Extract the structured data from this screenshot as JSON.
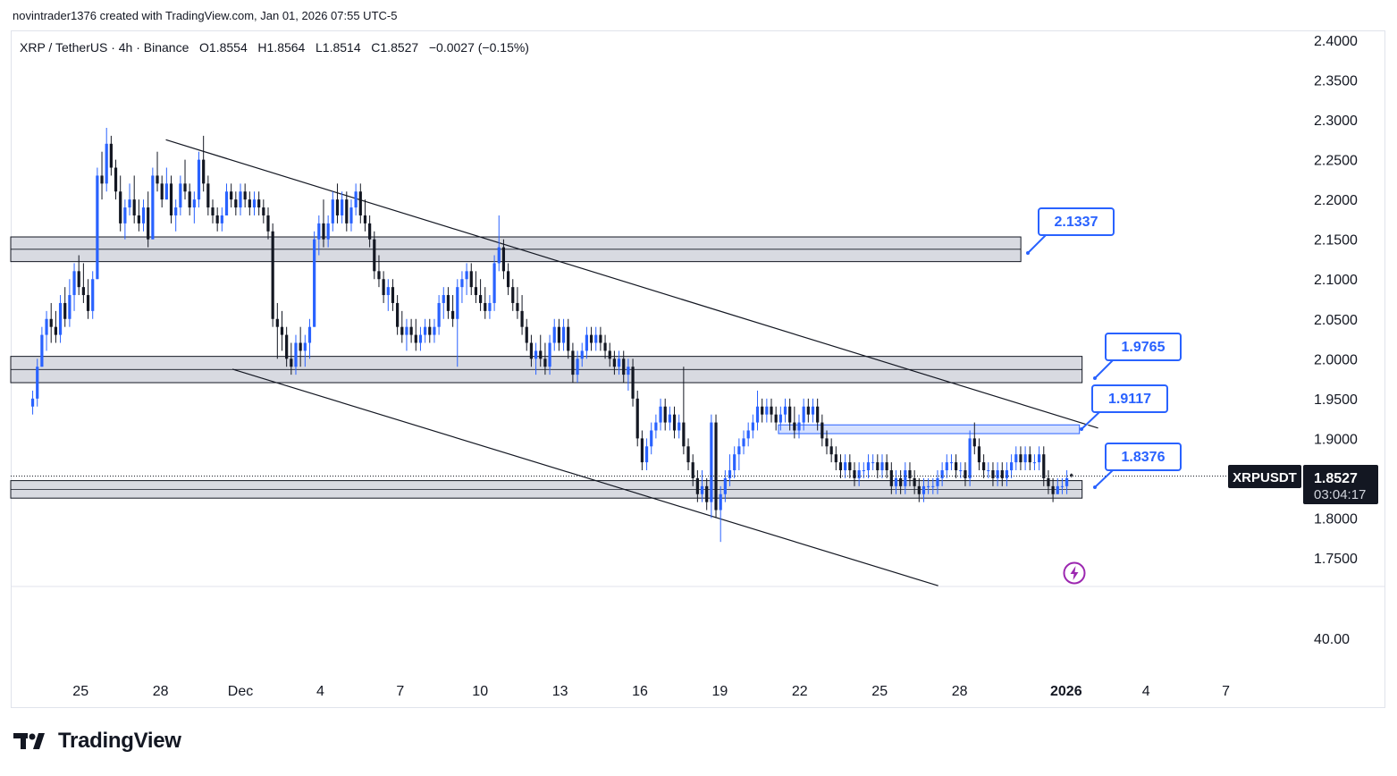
{
  "attribution": "novintrader1376 created with TradingView.com, Jan 01, 2026 07:55 UTC-5",
  "legend": {
    "symbol": "XRP / TetherUS · 4h · Binance",
    "ohlc": "O1.8554   H1.8564   L1.8514   C1.8527   −0.0027 (−0.15%)"
  },
  "brand": {
    "name": "TradingView",
    "logo_icon": "tradingview-logo-icon"
  },
  "price_tag": {
    "ticker": "XRPUSDT",
    "price": "1.8527",
    "countdown": "03:04:17"
  },
  "indicator_pane": {
    "value_label": "40.00"
  },
  "colors": {
    "up": "#2962ff",
    "down": "#131722",
    "zone_fill": "#d1d4dc",
    "blue_zone_fill": "#cfdcff",
    "accent": "#2962ff"
  },
  "chart_data": {
    "type": "candlestick",
    "interval": "4h",
    "yaxis": {
      "range": [
        1.7,
        2.4
      ],
      "ticks": [
        "2.4000",
        "2.3500",
        "2.3000",
        "2.2500",
        "2.2000",
        "2.1500",
        "2.1000",
        "2.0500",
        "2.0000",
        "1.9500",
        "1.9000",
        "1.8500",
        "1.8000",
        "1.7500"
      ]
    },
    "xaxis": {
      "ticks": [
        "25",
        "28",
        "Dec",
        "4",
        "7",
        "10",
        "13",
        "16",
        "19",
        "22",
        "25",
        "28",
        "2026",
        "4",
        "7"
      ],
      "bold_ticks": [
        "2026"
      ],
      "range_days": [
        -7.5,
        37.5
      ]
    },
    "horizontal_zones": [
      {
        "name": "resistance-zone",
        "low": 2.122,
        "high": 2.153,
        "start_day": -8.0,
        "end_day": 29.3,
        "color": "gray"
      },
      {
        "name": "mid-zone",
        "low": 1.97,
        "high": 2.003,
        "start_day": -8.0,
        "end_day": 31.6,
        "color": "gray"
      },
      {
        "name": "blue-zone",
        "low": 1.906,
        "high": 1.917,
        "start_day": 20.2,
        "end_day": 31.5,
        "color": "blue"
      },
      {
        "name": "support-zone",
        "low": 1.825,
        "high": 1.847,
        "start_day": -8.0,
        "end_day": 31.6,
        "color": "gray"
      }
    ],
    "trendlines": [
      {
        "name": "upper-channel-line",
        "x1": -2.8,
        "y1": 2.275,
        "x2": 32.2,
        "y2": 1.913
      },
      {
        "name": "lower-channel-line",
        "x1": -0.3,
        "y1": 1.987,
        "x2": 26.2,
        "y2": 1.715
      }
    ],
    "callouts": [
      {
        "label": "2.1337",
        "price": 2.1337
      },
      {
        "label": "1.9765",
        "price": 1.9765
      },
      {
        "label": "1.9117",
        "price": 1.9117
      },
      {
        "label": "1.8376",
        "price": 1.8376
      }
    ],
    "last_price": 1.8527,
    "candles": [
      [
        1.94,
        1.96,
        1.93,
        1.95
      ],
      [
        1.95,
        2.0,
        1.94,
        1.99
      ],
      [
        1.99,
        2.04,
        1.99,
        2.03
      ],
      [
        2.03,
        2.06,
        2.01,
        2.05
      ],
      [
        2.05,
        2.07,
        2.02,
        2.04
      ],
      [
        2.04,
        2.06,
        2.02,
        2.03
      ],
      [
        2.03,
        2.08,
        2.02,
        2.07
      ],
      [
        2.07,
        2.09,
        2.04,
        2.05
      ],
      [
        2.05,
        2.1,
        2.04,
        2.08
      ],
      [
        2.08,
        2.12,
        2.06,
        2.11
      ],
      [
        2.11,
        2.13,
        2.08,
        2.09
      ],
      [
        2.09,
        2.12,
        2.07,
        2.08
      ],
      [
        2.08,
        2.1,
        2.05,
        2.06
      ],
      [
        2.06,
        2.11,
        2.05,
        2.1
      ],
      [
        2.1,
        2.24,
        2.1,
        2.23
      ],
      [
        2.23,
        2.26,
        2.2,
        2.22
      ],
      [
        2.22,
        2.29,
        2.21,
        2.27
      ],
      [
        2.27,
        2.28,
        2.23,
        2.24
      ],
      [
        2.24,
        2.25,
        2.2,
        2.21
      ],
      [
        2.21,
        2.23,
        2.16,
        2.17
      ],
      [
        2.17,
        2.2,
        2.15,
        2.19
      ],
      [
        2.19,
        2.22,
        2.18,
        2.2
      ],
      [
        2.2,
        2.23,
        2.17,
        2.18
      ],
      [
        2.18,
        2.2,
        2.16,
        2.17
      ],
      [
        2.17,
        2.2,
        2.16,
        2.19
      ],
      [
        2.19,
        2.21,
        2.14,
        2.15
      ],
      [
        2.15,
        2.24,
        2.15,
        2.23
      ],
      [
        2.23,
        2.26,
        2.21,
        2.22
      ],
      [
        2.22,
        2.23,
        2.19,
        2.2
      ],
      [
        2.2,
        2.24,
        2.2,
        2.22
      ],
      [
        2.22,
        2.23,
        2.17,
        2.18
      ],
      [
        2.18,
        2.2,
        2.16,
        2.19
      ],
      [
        2.19,
        2.23,
        2.18,
        2.22
      ],
      [
        2.22,
        2.25,
        2.2,
        2.21
      ],
      [
        2.21,
        2.22,
        2.18,
        2.19
      ],
      [
        2.19,
        2.21,
        2.17,
        2.2
      ],
      [
        2.2,
        2.26,
        2.19,
        2.25
      ],
      [
        2.25,
        2.28,
        2.21,
        2.22
      ],
      [
        2.22,
        2.23,
        2.18,
        2.19
      ],
      [
        2.19,
        2.2,
        2.17,
        2.18
      ],
      [
        2.18,
        2.19,
        2.16,
        2.17
      ],
      [
        2.17,
        2.19,
        2.16,
        2.18
      ],
      [
        2.18,
        2.22,
        2.18,
        2.21
      ],
      [
        2.21,
        2.22,
        2.19,
        2.2
      ],
      [
        2.2,
        2.21,
        2.18,
        2.19
      ],
      [
        2.19,
        2.22,
        2.18,
        2.21
      ],
      [
        2.21,
        2.22,
        2.19,
        2.2
      ],
      [
        2.2,
        2.21,
        2.18,
        2.19
      ],
      [
        2.19,
        2.21,
        2.18,
        2.2
      ],
      [
        2.2,
        2.21,
        2.18,
        2.19
      ],
      [
        2.19,
        2.2,
        2.17,
        2.18
      ],
      [
        2.18,
        2.19,
        2.15,
        2.16
      ],
      [
        2.16,
        2.17,
        2.04,
        2.05
      ],
      [
        2.05,
        2.07,
        2.0,
        2.04
      ],
      [
        2.04,
        2.06,
        2.01,
        2.03
      ],
      [
        2.03,
        2.04,
        1.99,
        2.0
      ],
      [
        2.0,
        2.02,
        1.98,
        1.99
      ],
      [
        1.99,
        2.03,
        1.98,
        2.02
      ],
      [
        2.02,
        2.04,
        1.99,
        2.01
      ],
      [
        2.01,
        2.03,
        1.99,
        2.02
      ],
      [
        2.02,
        2.05,
        2.0,
        2.04
      ],
      [
        2.04,
        2.16,
        2.04,
        2.15
      ],
      [
        2.15,
        2.18,
        2.13,
        2.17
      ],
      [
        2.17,
        2.2,
        2.14,
        2.15
      ],
      [
        2.15,
        2.18,
        2.14,
        2.17
      ],
      [
        2.17,
        2.21,
        2.16,
        2.2
      ],
      [
        2.2,
        2.22,
        2.17,
        2.18
      ],
      [
        2.18,
        2.21,
        2.17,
        2.2
      ],
      [
        2.2,
        2.21,
        2.16,
        2.17
      ],
      [
        2.17,
        2.2,
        2.16,
        2.19
      ],
      [
        2.19,
        2.22,
        2.18,
        2.21
      ],
      [
        2.21,
        2.22,
        2.17,
        2.18
      ],
      [
        2.18,
        2.2,
        2.16,
        2.17
      ],
      [
        2.17,
        2.18,
        2.14,
        2.15
      ],
      [
        2.15,
        2.16,
        2.1,
        2.11
      ],
      [
        2.11,
        2.13,
        2.09,
        2.1
      ],
      [
        2.1,
        2.11,
        2.07,
        2.08
      ],
      [
        2.08,
        2.1,
        2.06,
        2.09
      ],
      [
        2.09,
        2.1,
        2.06,
        2.07
      ],
      [
        2.07,
        2.08,
        2.03,
        2.04
      ],
      [
        2.04,
        2.06,
        2.02,
        2.03
      ],
      [
        2.03,
        2.05,
        2.01,
        2.04
      ],
      [
        2.04,
        2.05,
        2.02,
        2.03
      ],
      [
        2.03,
        2.05,
        2.01,
        2.02
      ],
      [
        2.02,
        2.04,
        2.01,
        2.03
      ],
      [
        2.03,
        2.05,
        2.02,
        2.04
      ],
      [
        2.04,
        2.05,
        2.02,
        2.03
      ],
      [
        2.03,
        2.05,
        2.02,
        2.04
      ],
      [
        2.04,
        2.08,
        2.03,
        2.07
      ],
      [
        2.07,
        2.09,
        2.05,
        2.08
      ],
      [
        2.08,
        2.09,
        2.05,
        2.06
      ],
      [
        2.06,
        2.08,
        2.04,
        2.05
      ],
      [
        2.05,
        2.1,
        1.99,
        2.09
      ],
      [
        2.09,
        2.11,
        2.07,
        2.1
      ],
      [
        2.1,
        2.12,
        2.08,
        2.11
      ],
      [
        2.11,
        2.12,
        2.08,
        2.09
      ],
      [
        2.09,
        2.11,
        2.07,
        2.08
      ],
      [
        2.08,
        2.1,
        2.06,
        2.07
      ],
      [
        2.07,
        2.09,
        2.05,
        2.06
      ],
      [
        2.06,
        2.08,
        2.05,
        2.07
      ],
      [
        2.07,
        2.13,
        2.06,
        2.12
      ],
      [
        2.12,
        2.18,
        2.11,
        2.14
      ],
      [
        2.14,
        2.15,
        2.1,
        2.11
      ],
      [
        2.11,
        2.12,
        2.08,
        2.09
      ],
      [
        2.09,
        2.1,
        2.06,
        2.07
      ],
      [
        2.07,
        2.09,
        2.05,
        2.06
      ],
      [
        2.06,
        2.08,
        2.03,
        2.04
      ],
      [
        2.04,
        2.05,
        2.01,
        2.02
      ],
      [
        2.02,
        2.03,
        1.99,
        2.0
      ],
      [
        2.0,
        2.02,
        1.98,
        2.01
      ],
      [
        2.01,
        2.03,
        1.99,
        2.0
      ],
      [
        2.0,
        2.02,
        1.98,
        1.99
      ],
      [
        1.99,
        2.03,
        1.98,
        2.02
      ],
      [
        2.02,
        2.05,
        2.01,
        2.04
      ],
      [
        2.04,
        2.05,
        2.01,
        2.02
      ],
      [
        2.02,
        2.05,
        2.01,
        2.04
      ],
      [
        2.04,
        2.05,
        2.0,
        2.01
      ],
      [
        2.01,
        2.02,
        1.97,
        1.98
      ],
      [
        1.98,
        2.01,
        1.97,
        2.0
      ],
      [
        2.0,
        2.02,
        1.99,
        2.01
      ],
      [
        2.01,
        2.04,
        2.0,
        2.03
      ],
      [
        2.03,
        2.04,
        2.01,
        2.02
      ],
      [
        2.02,
        2.04,
        2.01,
        2.03
      ],
      [
        2.03,
        2.04,
        2.01,
        2.02
      ],
      [
        2.02,
        2.03,
        2.0,
        2.01
      ],
      [
        2.01,
        2.02,
        1.99,
        2.0
      ],
      [
        2.0,
        2.01,
        1.98,
        1.99
      ],
      [
        1.99,
        2.01,
        1.98,
        2.0
      ],
      [
        2.0,
        2.01,
        1.97,
        1.98
      ],
      [
        1.98,
        2.0,
        1.96,
        1.99
      ],
      [
        1.99,
        2.0,
        1.94,
        1.95
      ],
      [
        1.95,
        1.96,
        1.89,
        1.9
      ],
      [
        1.9,
        1.91,
        1.86,
        1.87
      ],
      [
        1.87,
        1.9,
        1.86,
        1.89
      ],
      [
        1.89,
        1.92,
        1.88,
        1.91
      ],
      [
        1.91,
        1.93,
        1.9,
        1.92
      ],
      [
        1.92,
        1.95,
        1.91,
        1.94
      ],
      [
        1.94,
        1.95,
        1.91,
        1.92
      ],
      [
        1.92,
        1.94,
        1.91,
        1.93
      ],
      [
        1.93,
        1.94,
        1.9,
        1.91
      ],
      [
        1.91,
        1.93,
        1.9,
        1.92
      ],
      [
        1.92,
        1.99,
        1.88,
        1.89
      ],
      [
        1.89,
        1.9,
        1.86,
        1.87
      ],
      [
        1.87,
        1.88,
        1.84,
        1.85
      ],
      [
        1.85,
        1.86,
        1.82,
        1.83
      ],
      [
        1.83,
        1.86,
        1.82,
        1.84
      ],
      [
        1.84,
        1.85,
        1.81,
        1.82
      ],
      [
        1.82,
        1.93,
        1.8,
        1.92
      ],
      [
        1.92,
        1.93,
        1.8,
        1.81
      ],
      [
        1.81,
        1.84,
        1.77,
        1.83
      ],
      [
        1.83,
        1.86,
        1.82,
        1.85
      ],
      [
        1.85,
        1.88,
        1.84,
        1.86
      ],
      [
        1.86,
        1.89,
        1.85,
        1.88
      ],
      [
        1.88,
        1.9,
        1.86,
        1.89
      ],
      [
        1.89,
        1.91,
        1.88,
        1.9
      ],
      [
        1.9,
        1.92,
        1.89,
        1.91
      ],
      [
        1.91,
        1.93,
        1.9,
        1.92
      ],
      [
        1.92,
        1.96,
        1.91,
        1.94
      ],
      [
        1.94,
        1.95,
        1.92,
        1.93
      ],
      [
        1.93,
        1.95,
        1.92,
        1.94
      ],
      [
        1.94,
        1.95,
        1.92,
        1.93
      ],
      [
        1.93,
        1.94,
        1.91,
        1.92
      ],
      [
        1.92,
        1.94,
        1.91,
        1.93
      ],
      [
        1.93,
        1.95,
        1.92,
        1.94
      ],
      [
        1.94,
        1.95,
        1.91,
        1.92
      ],
      [
        1.92,
        1.94,
        1.9,
        1.91
      ],
      [
        1.91,
        1.93,
        1.9,
        1.92
      ],
      [
        1.92,
        1.95,
        1.91,
        1.94
      ],
      [
        1.94,
        1.95,
        1.92,
        1.93
      ],
      [
        1.93,
        1.95,
        1.92,
        1.94
      ],
      [
        1.94,
        1.95,
        1.91,
        1.92
      ],
      [
        1.92,
        1.93,
        1.89,
        1.9
      ],
      [
        1.9,
        1.91,
        1.88,
        1.89
      ],
      [
        1.89,
        1.9,
        1.87,
        1.88
      ],
      [
        1.88,
        1.89,
        1.86,
        1.87
      ],
      [
        1.87,
        1.88,
        1.85,
        1.86
      ],
      [
        1.86,
        1.88,
        1.85,
        1.87
      ],
      [
        1.87,
        1.88,
        1.85,
        1.86
      ],
      [
        1.86,
        1.87,
        1.84,
        1.85
      ],
      [
        1.85,
        1.87,
        1.84,
        1.86
      ],
      [
        1.86,
        1.87,
        1.85,
        1.86
      ],
      [
        1.86,
        1.88,
        1.85,
        1.87
      ],
      [
        1.87,
        1.88,
        1.86,
        1.87
      ],
      [
        1.87,
        1.88,
        1.85,
        1.86
      ],
      [
        1.86,
        1.88,
        1.85,
        1.87
      ],
      [
        1.87,
        1.88,
        1.85,
        1.86
      ],
      [
        1.86,
        1.87,
        1.83,
        1.84
      ],
      [
        1.84,
        1.86,
        1.83,
        1.85
      ],
      [
        1.85,
        1.86,
        1.83,
        1.84
      ],
      [
        1.84,
        1.87,
        1.83,
        1.86
      ],
      [
        1.86,
        1.87,
        1.84,
        1.85
      ],
      [
        1.85,
        1.86,
        1.83,
        1.84
      ],
      [
        1.84,
        1.85,
        1.82,
        1.83
      ],
      [
        1.83,
        1.85,
        1.82,
        1.84
      ],
      [
        1.84,
        1.85,
        1.83,
        1.84
      ],
      [
        1.84,
        1.85,
        1.83,
        1.84
      ],
      [
        1.84,
        1.86,
        1.83,
        1.85
      ],
      [
        1.85,
        1.87,
        1.84,
        1.86
      ],
      [
        1.86,
        1.88,
        1.85,
        1.87
      ],
      [
        1.87,
        1.88,
        1.86,
        1.87
      ],
      [
        1.87,
        1.88,
        1.85,
        1.86
      ],
      [
        1.86,
        1.87,
        1.85,
        1.86
      ],
      [
        1.86,
        1.87,
        1.84,
        1.85
      ],
      [
        1.85,
        1.91,
        1.84,
        1.9
      ],
      [
        1.9,
        1.92,
        1.88,
        1.89
      ],
      [
        1.89,
        1.9,
        1.86,
        1.87
      ],
      [
        1.87,
        1.88,
        1.85,
        1.86
      ],
      [
        1.86,
        1.87,
        1.85,
        1.86
      ],
      [
        1.86,
        1.87,
        1.84,
        1.85
      ],
      [
        1.85,
        1.87,
        1.84,
        1.86
      ],
      [
        1.86,
        1.87,
        1.84,
        1.85
      ],
      [
        1.85,
        1.87,
        1.84,
        1.86
      ],
      [
        1.86,
        1.88,
        1.85,
        1.87
      ],
      [
        1.87,
        1.89,
        1.86,
        1.88
      ],
      [
        1.88,
        1.89,
        1.86,
        1.87
      ],
      [
        1.87,
        1.89,
        1.86,
        1.88
      ],
      [
        1.88,
        1.89,
        1.86,
        1.87
      ],
      [
        1.87,
        1.88,
        1.86,
        1.87
      ],
      [
        1.87,
        1.89,
        1.86,
        1.88
      ],
      [
        1.88,
        1.89,
        1.84,
        1.85
      ],
      [
        1.85,
        1.86,
        1.83,
        1.84
      ],
      [
        1.84,
        1.85,
        1.82,
        1.83
      ],
      [
        1.83,
        1.85,
        1.83,
        1.84
      ],
      [
        1.84,
        1.85,
        1.83,
        1.84
      ],
      [
        1.84,
        1.86,
        1.83,
        1.85
      ],
      [
        1.855,
        1.856,
        1.851,
        1.853
      ]
    ]
  }
}
